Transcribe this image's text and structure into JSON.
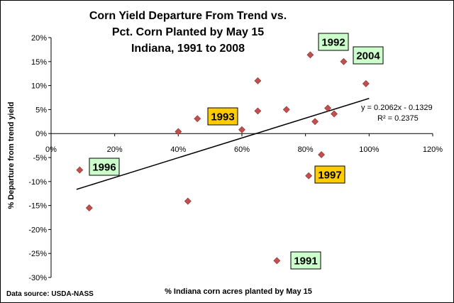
{
  "chart_data": {
    "type": "scatter",
    "title_lines": [
      "Corn Yield Departure From Trend vs.",
      "Pct. Corn Planted by May 15",
      "Indiana, 1991 to 2008"
    ],
    "xlabel": "% Indiana corn acres planted by May 15",
    "ylabel": "% Departure from trend yield",
    "source": "Data source: USDA-NASS",
    "xlim": [
      0,
      1.2
    ],
    "ylim": [
      -0.3,
      0.2
    ],
    "x_ticks": [
      0,
      0.2,
      0.4,
      0.6,
      0.8,
      1.0,
      1.2
    ],
    "x_tick_labels": [
      "0%",
      "20%",
      "40%",
      "60%",
      "80%",
      "100%",
      "120%"
    ],
    "y_ticks": [
      0.2,
      0.15,
      0.1,
      0.05,
      0,
      -0.05,
      -0.1,
      -0.15,
      -0.2,
      -0.25,
      -0.3
    ],
    "y_tick_labels": [
      "20%",
      "15%",
      "10%",
      "5%",
      "0%",
      "-5%",
      "-10%",
      "-15%",
      "-20%",
      "-25%",
      "-30%"
    ],
    "marker_color": "#C0504D",
    "points": [
      {
        "x": 0.09,
        "y": -0.076
      },
      {
        "x": 0.12,
        "y": -0.155
      },
      {
        "x": 0.4,
        "y": 0.004
      },
      {
        "x": 0.43,
        "y": -0.141
      },
      {
        "x": 0.46,
        "y": 0.031
      },
      {
        "x": 0.6,
        "y": 0.008
      },
      {
        "x": 0.65,
        "y": 0.11
      },
      {
        "x": 0.65,
        "y": 0.047
      },
      {
        "x": 0.71,
        "y": -0.265
      },
      {
        "x": 0.74,
        "y": 0.05
      },
      {
        "x": 0.81,
        "y": -0.088
      },
      {
        "x": 0.815,
        "y": 0.164
      },
      {
        "x": 0.83,
        "y": 0.025
      },
      {
        "x": 0.85,
        "y": -0.044
      },
      {
        "x": 0.87,
        "y": 0.053
      },
      {
        "x": 0.89,
        "y": 0.041
      },
      {
        "x": 0.92,
        "y": 0.15
      },
      {
        "x": 0.99,
        "y": 0.104
      }
    ],
    "trendline": {
      "slope": 0.2062,
      "intercept": -0.1329,
      "x_range": [
        0.08,
        1.0
      ]
    },
    "equation": "y = 0.2062x - 0.1329",
    "r2": "R² = 0.2375",
    "annotations": [
      {
        "label": "1992",
        "bg": "#CCFFCC"
      },
      {
        "label": "2004",
        "bg": "#CCFFCC"
      },
      {
        "label": "1993",
        "bg": "#FFCC00"
      },
      {
        "label": "1996",
        "bg": "#CCFFCC"
      },
      {
        "label": "1997",
        "bg": "#FFCC00"
      },
      {
        "label": "1991",
        "bg": "#CCFFCC"
      }
    ]
  }
}
